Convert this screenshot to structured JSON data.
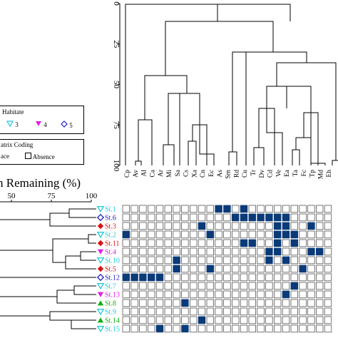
{
  "top_dendrogram": {
    "axis_ticks": [
      "0",
      "25",
      "50",
      "75",
      "100"
    ],
    "taxa": [
      "Cp",
      "Av",
      "Al",
      "Ca",
      "Ar",
      "Mi",
      "Sa",
      "Cs",
      "Xa",
      "Cn",
      "Ec",
      "As",
      "Sm",
      "Rd",
      "Cu",
      "Tr",
      "Dv",
      "Cd",
      "Ve",
      "Ea",
      "Ta",
      "Fc",
      "Tp",
      "Md",
      "Eh"
    ]
  },
  "habitat_legend": {
    "title": "Habitate",
    "items": [
      {
        "label": "3",
        "symbol": "triangle-down-open",
        "color": "#20c8d8"
      },
      {
        "label": "4",
        "symbol": "triangle-down-filled",
        "color": "#e020e0"
      },
      {
        "label": "5",
        "symbol": "diamond-open",
        "color": "#2020c0"
      }
    ]
  },
  "matrix_legend": {
    "title": "atrix Coding",
    "presence_label": "ace",
    "absence_label": "Absence",
    "presence_color": "#0b3a78"
  },
  "left_axis": {
    "title": "n Remaining (%)",
    "ticks": [
      "50",
      "75",
      "100"
    ]
  },
  "stations": [
    {
      "label": "St.1",
      "symbol": "triangle-down-open",
      "color": "#20c8d8"
    },
    {
      "label": "St.6",
      "symbol": "diamond-open",
      "color": "#2020c0"
    },
    {
      "label": "St.3",
      "symbol": "diamond-filled",
      "color": "#e01010"
    },
    {
      "label": "St.2",
      "symbol": "triangle-down-open",
      "color": "#20c8d8"
    },
    {
      "label": "St.11",
      "symbol": "diamond-filled",
      "color": "#e01010"
    },
    {
      "label": "St.4",
      "symbol": "triangle-down-filled",
      "color": "#e020e0"
    },
    {
      "label": "St.10",
      "symbol": "triangle-down-open",
      "color": "#20c8d8"
    },
    {
      "label": "St.5",
      "symbol": "diamond-filled",
      "color": "#e01010"
    },
    {
      "label": "St.12",
      "symbol": "diamond-open",
      "color": "#2020c0"
    },
    {
      "label": "St.7",
      "symbol": "triangle-down-open",
      "color": "#20c8d8"
    },
    {
      "label": "St.13",
      "symbol": "triangle-down-filled",
      "color": "#e020e0"
    },
    {
      "label": "St.8",
      "symbol": "triangle-up-filled",
      "color": "#10b010"
    },
    {
      "label": "St.9",
      "symbol": "triangle-down-open",
      "color": "#20c8d8"
    },
    {
      "label": "St.14",
      "symbol": "triangle-up-filled",
      "color": "#10b010"
    },
    {
      "label": "St.15",
      "symbol": "triangle-down-open",
      "color": "#20c8d8"
    }
  ],
  "presence_matrix": [
    [
      0,
      0,
      0,
      0,
      0,
      0,
      0,
      0,
      0,
      0,
      0,
      1,
      1,
      0,
      1,
      0,
      0,
      0,
      0,
      0,
      0,
      0,
      0,
      0,
      0
    ],
    [
      0,
      0,
      0,
      0,
      0,
      0,
      0,
      0,
      0,
      0,
      0,
      0,
      0,
      1,
      1,
      1,
      1,
      1,
      1,
      1,
      0,
      0,
      0,
      0,
      0
    ],
    [
      0,
      0,
      0,
      0,
      0,
      0,
      0,
      0,
      0,
      1,
      0,
      0,
      0,
      0,
      0,
      0,
      0,
      0,
      1,
      1,
      0,
      0,
      1,
      0,
      0
    ],
    [
      1,
      0,
      0,
      0,
      0,
      0,
      0,
      0,
      0,
      0,
      1,
      0,
      0,
      0,
      0,
      0,
      0,
      0,
      1,
      1,
      1,
      0,
      0,
      0,
      0
    ],
    [
      0,
      0,
      0,
      0,
      0,
      0,
      0,
      0,
      0,
      0,
      0,
      0,
      0,
      0,
      1,
      1,
      0,
      0,
      1,
      0,
      1,
      0,
      0,
      0,
      0
    ],
    [
      0,
      0,
      0,
      0,
      0,
      0,
      0,
      0,
      0,
      0,
      0,
      0,
      0,
      0,
      0,
      0,
      0,
      1,
      1,
      0,
      0,
      0,
      1,
      1,
      0
    ],
    [
      0,
      0,
      0,
      0,
      0,
      0,
      1,
      0,
      0,
      0,
      0,
      0,
      0,
      0,
      0,
      0,
      0,
      1,
      0,
      1,
      0,
      0,
      0,
      0,
      0
    ],
    [
      0,
      0,
      0,
      0,
      0,
      0,
      1,
      0,
      0,
      0,
      1,
      0,
      0,
      0,
      0,
      0,
      0,
      0,
      0,
      0,
      0,
      1,
      0,
      0,
      0
    ],
    [
      1,
      1,
      1,
      1,
      1,
      0,
      0,
      0,
      0,
      0,
      0,
      0,
      0,
      0,
      0,
      0,
      0,
      0,
      0,
      0,
      0,
      0,
      0,
      0,
      0
    ],
    [
      0,
      0,
      0,
      0,
      0,
      0,
      0,
      0,
      0,
      0,
      0,
      0,
      0,
      0,
      0,
      0,
      0,
      0,
      0,
      0,
      1,
      0,
      0,
      0,
      0
    ],
    [
      0,
      0,
      0,
      0,
      0,
      0,
      0,
      0,
      0,
      0,
      0,
      0,
      0,
      0,
      0,
      0,
      0,
      0,
      0,
      1,
      0,
      0,
      0,
      0,
      0
    ],
    [
      0,
      0,
      0,
      0,
      0,
      0,
      0,
      1,
      0,
      0,
      0,
      0,
      0,
      0,
      0,
      0,
      0,
      0,
      0,
      0,
      0,
      0,
      0,
      0,
      0
    ],
    [
      0,
      0,
      0,
      0,
      0,
      0,
      0,
      0,
      0,
      0,
      0,
      0,
      0,
      0,
      0,
      0,
      0,
      0,
      0,
      0,
      0,
      0,
      0,
      0,
      0
    ],
    [
      0,
      0,
      0,
      0,
      0,
      0,
      0,
      0,
      0,
      1,
      0,
      0,
      0,
      0,
      0,
      0,
      0,
      0,
      0,
      0,
      0,
      0,
      0,
      0,
      0
    ],
    [
      0,
      0,
      0,
      0,
      1,
      0,
      0,
      1,
      0,
      0,
      0,
      0,
      0,
      0,
      0,
      0,
      0,
      0,
      0,
      0,
      0,
      0,
      0,
      0,
      0
    ]
  ]
}
